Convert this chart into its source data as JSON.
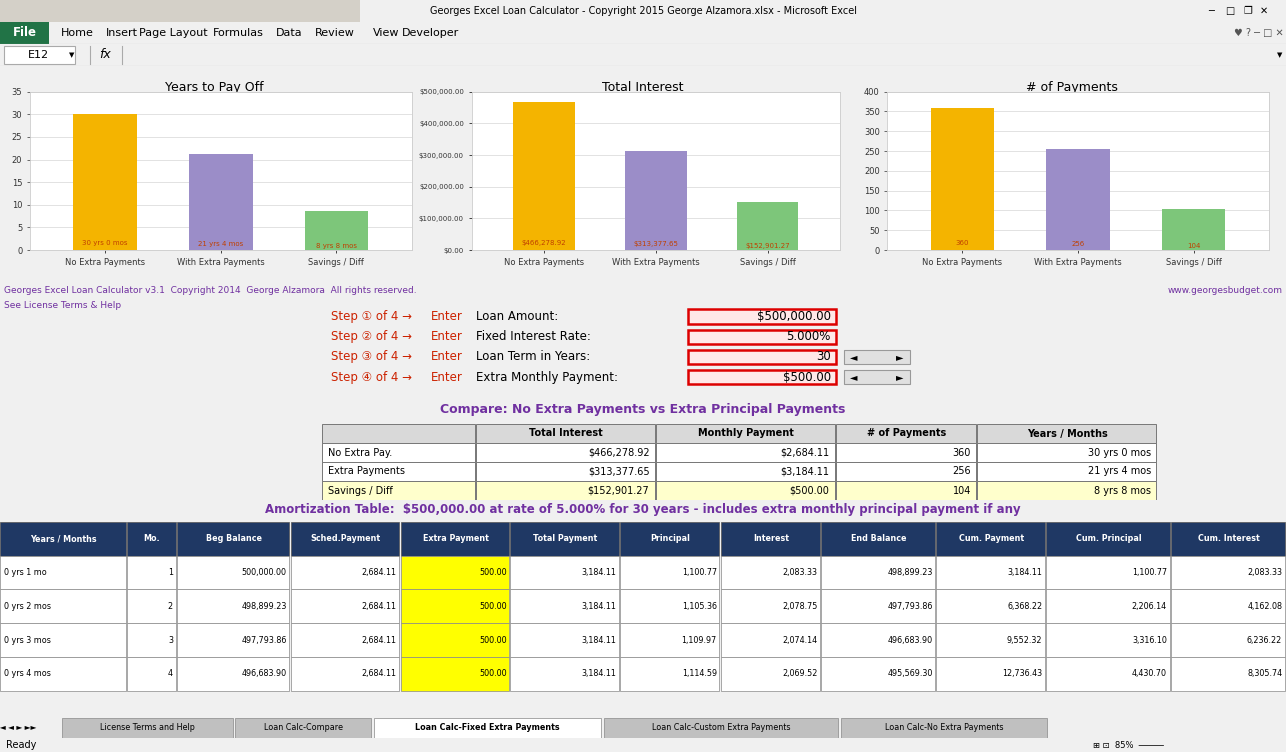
{
  "title_bar": "Georges Excel Loan Calculator - Copyright 2015 George Alzamora.xlsx - Microsoft Excel",
  "formula_bar_cell": "E12",
  "menu_items": [
    "File",
    "Home",
    "Insert",
    "Page Layout",
    "Formulas",
    "Data",
    "Review",
    "View",
    "Developer"
  ],
  "chart1": {
    "title": "Years to Pay Off",
    "categories": [
      "No Extra Payments",
      "With Extra Payments",
      "Savings / Diff"
    ],
    "values": [
      30,
      21.333,
      8.667
    ],
    "labels": [
      "30 yrs 0 mos",
      "21 yrs 4 mos",
      "8 yrs 8 mos"
    ],
    "colors": [
      "#F4B400",
      "#9B8DC8",
      "#7DC67A"
    ],
    "ylim": [
      0,
      35
    ],
    "yticks": [
      0,
      5,
      10,
      15,
      20,
      25,
      30,
      35
    ]
  },
  "chart2": {
    "title": "Total Interest",
    "categories": [
      "No Extra Payments",
      "With Extra Payments",
      "Savings / Diff"
    ],
    "values": [
      466278.92,
      313377.65,
      152901.27
    ],
    "labels": [
      "$466,278.92",
      "$313,377.65",
      "$152,901.27"
    ],
    "colors": [
      "#F4B400",
      "#9B8DC8",
      "#7DC67A"
    ],
    "ylim": [
      0,
      500000
    ],
    "yticks": [
      0,
      100000,
      200000,
      300000,
      400000,
      500000
    ],
    "yticklabels": [
      "$0.00",
      "$100,000.00",
      "$200,000.00",
      "$300,000.00",
      "$400,000.00",
      "$500,000.00"
    ]
  },
  "chart3": {
    "title": "# of Payments",
    "categories": [
      "No Extra Payments",
      "With Extra Payments",
      "Savings / Diff"
    ],
    "values": [
      360,
      256,
      104
    ],
    "labels": [
      "360",
      "256",
      "104"
    ],
    "colors": [
      "#F4B400",
      "#9B8DC8",
      "#7DC67A"
    ],
    "ylim": [
      0,
      400
    ],
    "yticks": [
      0,
      50,
      100,
      150,
      200,
      250,
      300,
      350,
      400
    ]
  },
  "copyright_left": "Georges Excel Loan Calculator v3.1  Copyright 2014  George Alzamora  All rights reserved.",
  "see_license": "See License Terms & Help",
  "copyright_right": "www.georgesbudget.com",
  "input_labels": [
    "Step ① of 4 →",
    "Step ② of 4 →",
    "Step ③ of 4 →",
    "Step ④ of 4 →"
  ],
  "input_enter": [
    "Enter Loan Amount:",
    "Enter Fixed Interest Rate:",
    "Enter Loan Term in Years:",
    "Enter Extra Monthly Payment:"
  ],
  "input_bold": [
    "Enter ",
    "Enter ",
    "Enter ",
    "Enter "
  ],
  "input_rest": [
    "Loan Amount:",
    "Fixed Interest Rate:",
    "Loan Term in Years:",
    "Extra Monthly Payment:"
  ],
  "input_values": [
    "$500,000.00",
    "5.000%",
    "30",
    "$500.00"
  ],
  "compare_title": "Compare: No Extra Payments vs Extra Principal Payments",
  "compare_headers": [
    "",
    "Total Interest",
    "Monthly Payment",
    "# of Payments",
    "Years / Months"
  ],
  "compare_rows": [
    [
      "No Extra Pay.",
      "$466,278.92",
      "$2,684.11",
      "360",
      "30 yrs 0 mos"
    ],
    [
      "Extra Payments",
      "$313,377.65",
      "$3,184.11",
      "256",
      "21 yrs 4 mos"
    ],
    [
      "Savings / Diff",
      "$152,901.27",
      "$500.00",
      "104",
      "8 yrs 8 mos"
    ]
  ],
  "compare_row_colors": [
    "#FFFFFF",
    "#FFFFFF",
    "#FFFFCC"
  ],
  "amort_title": "Amortization Table:  $500,000.00 at rate of 5.000% for 30 years - includes extra monthly principal payment if any",
  "amort_headers": [
    "Years / Months",
    "Mo.",
    "Beg Balance",
    "Sched.Payment",
    "Extra Payment",
    "Total Payment",
    "Principal",
    "Interest",
    "End Balance",
    "Cum. Payment",
    "Cum. Principal",
    "Cum. Interest"
  ],
  "amort_header_color": "#1F3864",
  "amort_header_text_color": "#FFFFFF",
  "amort_rows": [
    [
      "0 yrs 1 mo",
      "1",
      "500,000.00",
      "2,684.11",
      "500.00",
      "3,184.11",
      "1,100.77",
      "2,083.33",
      "498,899.23",
      "3,184.11",
      "1,100.77",
      "2,083.33"
    ],
    [
      "0 yrs 2 mos",
      "2",
      "498,899.23",
      "2,684.11",
      "500.00",
      "3,184.11",
      "1,105.36",
      "2,078.75",
      "497,793.86",
      "6,368.22",
      "2,206.14",
      "4,162.08"
    ],
    [
      "0 yrs 3 mos",
      "3",
      "497,793.86",
      "2,684.11",
      "500.00",
      "3,184.11",
      "1,109.97",
      "2,074.14",
      "496,683.90",
      "9,552.32",
      "3,316.10",
      "6,236.22"
    ],
    [
      "0 yrs 4 mos",
      "4",
      "496,683.90",
      "2,684.11",
      "500.00",
      "3,184.11",
      "1,114.59",
      "2,069.52",
      "495,569.30",
      "12,736.43",
      "4,430.70",
      "8,305.74"
    ]
  ],
  "amort_extra_payment_col": 4,
  "amort_extra_payment_color": "#FFFF00",
  "amort_row_colors": [
    "#FFFFFF",
    "#FFFFFF",
    "#FFFFFF",
    "#FFFFFF"
  ],
  "tabs": [
    "License Terms and Help",
    "Loan Calc-Compare",
    "Loan Calc-Fixed Extra Payments",
    "Loan Calc-Custom Extra Payments",
    "Loan Calc-No Extra Payments"
  ],
  "active_tab": 2
}
